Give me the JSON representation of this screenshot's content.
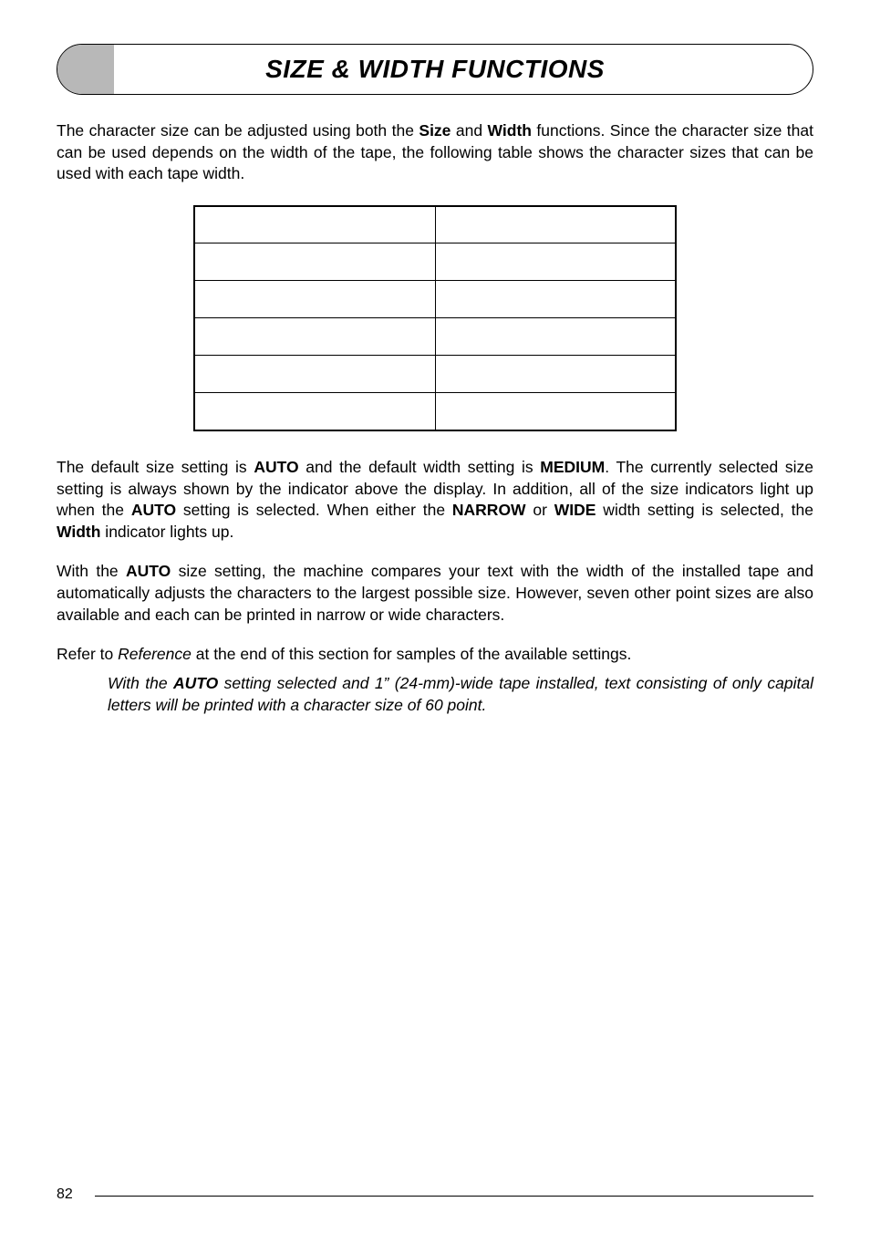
{
  "title": "SIZE & WIDTH FUNCTIONS",
  "para1_pre": "The character size can be adjusted using both the ",
  "para1_b1": "Size",
  "para1_mid1": " and ",
  "para1_b2": "Width",
  "para1_post": " functions. Since the character size that can be used depends on the width of the tape, the following table shows the character sizes that can be used with each tape width.",
  "table": {
    "rows": 6,
    "cols": 2
  },
  "para2_a": "The default size setting is ",
  "para2_b1": "AUTO",
  "para2_b": " and the default width setting is ",
  "para2_b2": "MEDIUM",
  "para2_c": ". The currently selected size setting is always shown by the indicator above the display. In addition, all of the size indicators light up when the ",
  "para2_b3": "AUTO",
  "para2_d": " setting is selected. When either the ",
  "para2_b4": "NARROW",
  "para2_e": " or ",
  "para2_b5": "WIDE",
  "para2_f": " width setting is selected, the ",
  "para2_b6": "Width",
  "para2_g": " indicator lights up.",
  "para3_a": "With the ",
  "para3_b1": "AUTO",
  "para3_b": " size setting, the machine compares your text with the width of the installed tape and automatically adjusts the characters to the largest possible size. However, seven other point sizes are also available and each can be printed in narrow or wide characters.",
  "para4_a": "Refer to ",
  "para4_i1": "Reference",
  "para4_b": " at the end of this section for samples of the available settings.",
  "note_a": "With the ",
  "note_b1": "AUTO",
  "note_b": " setting selected and 1” (24-mm)-wide tape installed, text consisting of only capital letters will be printed with a character size of 60 point.",
  "pageNumber": "82"
}
